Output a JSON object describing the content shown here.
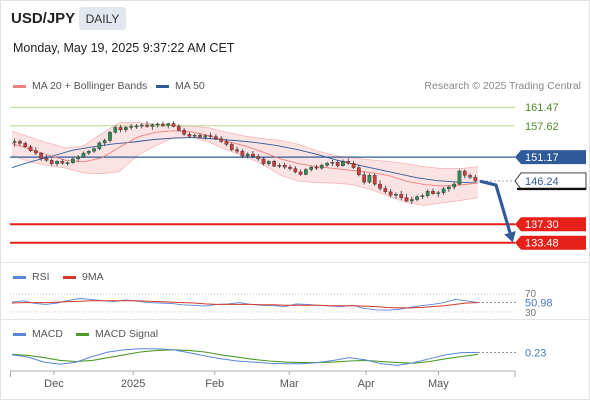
{
  "header": {
    "symbol": "USD/JPY",
    "timeframe": "DAILY",
    "datetime": "Monday, May 19, 2025 9:37:22 AM CET",
    "research_credit": "Research © 2025 Trading Central"
  },
  "colors": {
    "ma20": "#f08080",
    "ma50": "#2f5b9a",
    "bollinger_fill": "#fbd9d9",
    "resistance": "#2f5b9a",
    "support": "#e8201a",
    "target_green": "#9ccc6a",
    "rsi": "#5b86d6",
    "rsi_ma": "#d23a2a",
    "macd": "#5b86d6",
    "macd_signal": "#4e9a2a",
    "candle_up": "#2e8b57",
    "candle_down": "#d03b3b"
  },
  "chart_data": [
    {
      "type": "candlestick",
      "title": "USD/JPY",
      "timeframe": "DAILY",
      "legend": [
        "MA 20 + Bollinger Bands",
        "MA 50"
      ],
      "legend_placement": "top-left",
      "x_tick_labels": [
        "Dec",
        "2025",
        "Feb",
        "Mar",
        "Apr",
        "May"
      ],
      "ylim": [
        129.5,
        164
      ],
      "levels": [
        {
          "label": "161.47",
          "value": 161.47,
          "kind": "target"
        },
        {
          "label": "157.62",
          "value": 157.62,
          "kind": "target"
        },
        {
          "label": "151.17",
          "value": 151.17,
          "kind": "resistance"
        },
        {
          "label": "146.24",
          "value": 146.24,
          "kind": "last_price"
        },
        {
          "label": "137.30",
          "value": 137.3,
          "kind": "support"
        },
        {
          "label": "133.48",
          "value": 133.48,
          "kind": "support"
        }
      ],
      "forecast_arrow": {
        "from": 146.2,
        "via": 145.4,
        "to": 133.48
      },
      "ma20": [
        154.0,
        152.8,
        151.6,
        150.5,
        150.2,
        151.0,
        153.2,
        155.3,
        156.3,
        156.6,
        156.4,
        155.6,
        154.4,
        153.5,
        152.2,
        150.8,
        149.8,
        149.2,
        148.8,
        148.4,
        148.0,
        147.4,
        146.2,
        145.5,
        145.2,
        145.4,
        145.8
      ],
      "ma50": [
        149.0,
        150.3,
        151.4,
        152.6,
        153.3,
        153.9,
        154.3,
        154.8,
        155.1,
        155.2,
        154.9,
        154.6,
        154.2,
        153.6,
        152.8,
        151.8,
        150.6,
        149.6,
        148.7,
        147.8,
        146.9,
        146.3,
        146.0,
        145.8
      ],
      "bb_upper": [
        156.5,
        155.3,
        154.1,
        153.1,
        153.5,
        156.0,
        158.3,
        158.3,
        158.0,
        157.8,
        157.6,
        157.2,
        156.3,
        155.5,
        155.0,
        154.6,
        153.8,
        152.5,
        151.5,
        151.0,
        150.6,
        150.3,
        149.8,
        149.2,
        148.8,
        148.8,
        149.2
      ],
      "bb_lower": [
        151.5,
        150.2,
        149.4,
        148.9,
        147.9,
        147.7,
        148.2,
        151.5,
        153.5,
        155.2,
        155.3,
        154.3,
        152.6,
        151.4,
        149.6,
        147.4,
        146.2,
        145.9,
        145.8,
        145.5,
        144.5,
        143.1,
        141.8,
        141.2,
        141.7,
        142.2,
        142.8
      ],
      "ohlc": [
        [
          154.2,
          155.0,
          153.3,
          154.4
        ],
        [
          154.4,
          154.8,
          153.5,
          154.0
        ],
        [
          154.0,
          154.4,
          153.1,
          153.3
        ],
        [
          153.3,
          153.7,
          152.2,
          152.5
        ],
        [
          152.5,
          153.2,
          151.6,
          152.0
        ],
        [
          152.0,
          152.2,
          150.4,
          150.9
        ],
        [
          150.9,
          151.6,
          150.2,
          150.5
        ],
        [
          150.5,
          150.9,
          149.4,
          149.8
        ],
        [
          149.8,
          150.5,
          149.3,
          150.3
        ],
        [
          150.3,
          150.8,
          149.6,
          149.9
        ],
        [
          149.9,
          150.3,
          149.4,
          150.0
        ],
        [
          150.0,
          151.0,
          149.8,
          150.8
        ],
        [
          150.8,
          151.6,
          150.2,
          151.2
        ],
        [
          151.2,
          152.3,
          151.0,
          152.0
        ],
        [
          152.0,
          152.6,
          151.6,
          152.4
        ],
        [
          152.4,
          153.2,
          152.0,
          152.9
        ],
        [
          152.9,
          154.4,
          152.6,
          154.1
        ],
        [
          154.1,
          155.0,
          153.5,
          154.6
        ],
        [
          154.6,
          156.6,
          154.2,
          156.3
        ],
        [
          156.3,
          157.7,
          156.0,
          157.3
        ],
        [
          157.3,
          157.8,
          156.3,
          156.8
        ],
        [
          156.8,
          157.6,
          156.3,
          157.3
        ],
        [
          157.3,
          158.0,
          156.8,
          157.5
        ],
        [
          157.5,
          158.0,
          157.0,
          157.6
        ],
        [
          157.6,
          158.2,
          157.1,
          157.8
        ],
        [
          157.8,
          158.6,
          157.2,
          157.5
        ],
        [
          157.5,
          158.1,
          156.8,
          157.9
        ],
        [
          157.9,
          158.3,
          157.3,
          158.0
        ],
        [
          158.0,
          158.5,
          157.4,
          157.7
        ],
        [
          157.7,
          158.3,
          157.1,
          158.1
        ],
        [
          158.1,
          158.6,
          157.3,
          157.5
        ],
        [
          157.5,
          158.0,
          156.5,
          156.7
        ],
        [
          156.7,
          157.2,
          155.6,
          155.9
        ],
        [
          155.9,
          156.3,
          155.2,
          155.5
        ],
        [
          155.5,
          156.0,
          155.1,
          155.7
        ],
        [
          155.7,
          156.1,
          155.1,
          155.3
        ],
        [
          155.3,
          155.9,
          154.8,
          155.6
        ],
        [
          155.6,
          156.2,
          155.0,
          155.4
        ],
        [
          155.4,
          155.9,
          154.7,
          155.0
        ],
        [
          155.0,
          155.5,
          154.1,
          154.4
        ],
        [
          154.4,
          154.9,
          153.4,
          153.8
        ],
        [
          153.8,
          154.2,
          152.4,
          152.7
        ],
        [
          152.7,
          153.3,
          151.9,
          152.4
        ],
        [
          152.4,
          152.8,
          151.0,
          151.4
        ],
        [
          151.4,
          152.1,
          150.9,
          151.8
        ],
        [
          151.8,
          152.4,
          151.0,
          151.3
        ],
        [
          151.3,
          151.8,
          150.4,
          150.8
        ],
        [
          150.8,
          151.1,
          149.4,
          149.8
        ],
        [
          149.8,
          150.5,
          149.4,
          150.3
        ],
        [
          150.3,
          150.6,
          149.1,
          149.3
        ],
        [
          149.3,
          149.9,
          148.9,
          149.5
        ],
        [
          149.5,
          150.0,
          148.7,
          149.1
        ],
        [
          149.1,
          149.6,
          148.4,
          148.8
        ],
        [
          148.8,
          149.3,
          147.8,
          148.1
        ],
        [
          148.1,
          148.6,
          147.3,
          147.6
        ],
        [
          147.6,
          148.9,
          147.4,
          148.6
        ],
        [
          148.6,
          149.3,
          148.2,
          149.1
        ],
        [
          149.1,
          149.6,
          148.5,
          148.9
        ],
        [
          148.9,
          149.8,
          148.6,
          149.5
        ],
        [
          149.5,
          150.2,
          149.1,
          149.9
        ],
        [
          149.9,
          150.6,
          149.3,
          150.1
        ],
        [
          150.1,
          150.5,
          149.0,
          149.4
        ],
        [
          149.4,
          150.7,
          149.2,
          150.3
        ],
        [
          150.3,
          150.9,
          149.6,
          149.9
        ],
        [
          149.9,
          150.4,
          148.7,
          149.0
        ],
        [
          149.0,
          149.6,
          147.2,
          147.5
        ],
        [
          147.5,
          148.2,
          145.5,
          146.0
        ],
        [
          146.0,
          147.8,
          145.7,
          147.4
        ],
        [
          147.4,
          147.8,
          145.2,
          145.6
        ],
        [
          145.6,
          146.4,
          144.2,
          144.7
        ],
        [
          144.7,
          145.3,
          143.6,
          144.0
        ],
        [
          144.0,
          144.6,
          142.8,
          143.3
        ],
        [
          143.3,
          143.9,
          142.6,
          143.5
        ],
        [
          143.5,
          144.2,
          142.3,
          142.8
        ],
        [
          142.8,
          143.6,
          141.9,
          142.1
        ],
        [
          142.1,
          143.0,
          141.5,
          142.4
        ],
        [
          142.4,
          143.3,
          142.0,
          143.0
        ],
        [
          143.0,
          143.6,
          142.5,
          143.2
        ],
        [
          143.2,
          144.5,
          142.8,
          144.1
        ],
        [
          144.1,
          144.7,
          143.4,
          143.6
        ],
        [
          143.6,
          144.2,
          142.9,
          143.8
        ],
        [
          143.8,
          145.0,
          143.4,
          144.6
        ],
        [
          144.6,
          145.3,
          144.0,
          145.0
        ],
        [
          145.0,
          146.0,
          144.5,
          145.6
        ],
        [
          145.6,
          148.6,
          145.4,
          148.3
        ],
        [
          148.3,
          148.6,
          146.8,
          147.4
        ],
        [
          147.4,
          147.8,
          146.6,
          147.0
        ],
        [
          147.0,
          147.5,
          146.0,
          146.2
        ]
      ]
    },
    {
      "type": "line",
      "title": "RSI",
      "legend": [
        "RSI",
        "9MA"
      ],
      "levels": [
        70,
        30
      ],
      "value_label": "50.98",
      "rsi": [
        52,
        55,
        49,
        47,
        50,
        56,
        60,
        58,
        55,
        53,
        57,
        54,
        51,
        50,
        49,
        46,
        45,
        43,
        47,
        48,
        51,
        47,
        45,
        44,
        42,
        48,
        47,
        45,
        43,
        42,
        45,
        38,
        35,
        34,
        36,
        40,
        44,
        47,
        51,
        58,
        55,
        51
      ],
      "ma9": [
        50,
        51,
        51,
        51,
        52,
        53,
        54,
        55,
        55,
        55,
        55,
        55,
        54,
        53,
        52,
        51,
        50,
        48,
        47,
        47,
        47,
        47,
        46,
        46,
        45,
        45,
        45,
        45,
        44,
        44,
        44,
        43,
        42,
        40,
        39,
        39,
        40,
        42,
        44,
        47,
        50,
        51
      ]
    },
    {
      "type": "line",
      "title": "MACD",
      "legend": [
        "MACD",
        "MACD Signal"
      ],
      "value_label": "0.23",
      "macd": [
        -0.2,
        -0.6,
        -1.5,
        -1.9,
        -1.5,
        -0.5,
        0.3,
        0.7,
        0.9,
        0.9,
        0.7,
        0.2,
        -0.4,
        -0.9,
        -1.3,
        -1.5,
        -1.7,
        -1.8,
        -1.8,
        -1.6,
        -1.2,
        -0.7,
        -1.1,
        -1.8,
        -2.1,
        -1.6,
        -0.9,
        -0.2,
        0.2,
        0.23
      ],
      "signal": [
        -0.1,
        -0.3,
        -0.7,
        -1.2,
        -1.4,
        -1.2,
        -0.7,
        -0.2,
        0.3,
        0.6,
        0.7,
        0.6,
        0.3,
        -0.2,
        -0.6,
        -1.0,
        -1.3,
        -1.5,
        -1.6,
        -1.6,
        -1.5,
        -1.3,
        -1.2,
        -1.4,
        -1.6,
        -1.7,
        -1.4,
        -0.9,
        -0.5,
        -0.1
      ]
    }
  ]
}
